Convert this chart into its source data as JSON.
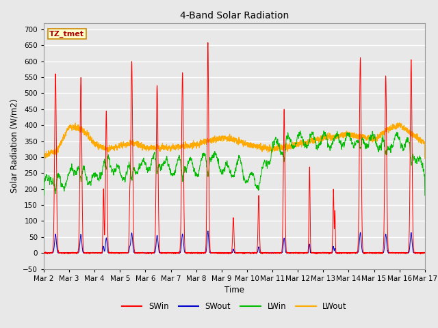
{
  "title": "4-Band Solar Radiation",
  "xlabel": "Time",
  "ylabel": "Solar Radiation (W/m2)",
  "label_text": "TZ_tmet",
  "ylim": [
    -50,
    720
  ],
  "series_colors": {
    "SWin": "#ff0000",
    "SWout": "#0000cc",
    "LWin": "#00bb00",
    "LWout": "#ffaa00"
  },
  "background_color": "#e8e8e8",
  "plot_bg_color": "#e8e8e8",
  "grid_color": "#ffffff",
  "n_days": 15,
  "points_per_day": 288,
  "start_day": 2,
  "end_day": 17
}
